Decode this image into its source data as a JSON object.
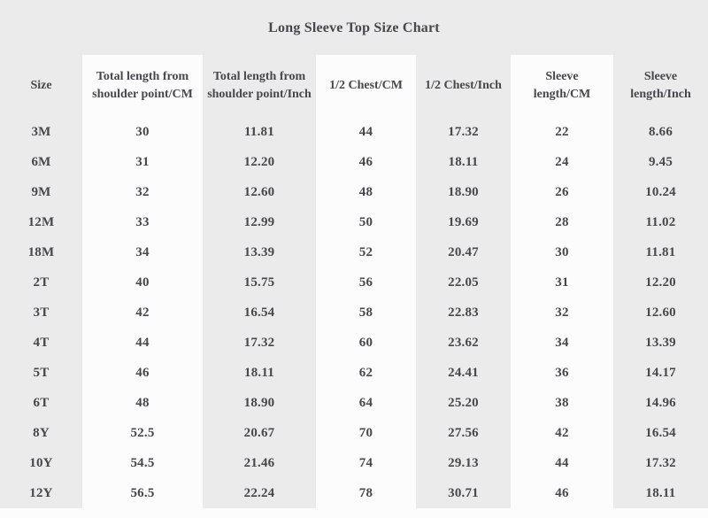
{
  "title": "Long Sleeve Top Size Chart",
  "colors": {
    "page_background": "#ebebeb",
    "stripe_background": "#fcfcfc",
    "text": "#47474d"
  },
  "chart_data": {
    "type": "table",
    "title": "Long Sleeve Top Size Chart",
    "columns": [
      "Size",
      "Total length from shoulder point/CM",
      "Total length from shoulder point/Inch",
      "1/2 Chest/CM",
      "1/2 Chest/Inch",
      "Sleeve length/CM",
      "Sleeve length/Inch"
    ],
    "rows": [
      [
        "3M",
        "30",
        "11.81",
        "44",
        "17.32",
        "22",
        "8.66"
      ],
      [
        "6M",
        "31",
        "12.20",
        "46",
        "18.11",
        "24",
        "9.45"
      ],
      [
        "9M",
        "32",
        "12.60",
        "48",
        "18.90",
        "26",
        "10.24"
      ],
      [
        "12M",
        "33",
        "12.99",
        "50",
        "19.69",
        "28",
        "11.02"
      ],
      [
        "18M",
        "34",
        "13.39",
        "52",
        "20.47",
        "30",
        "11.81"
      ],
      [
        "2T",
        "40",
        "15.75",
        "56",
        "22.05",
        "31",
        "12.20"
      ],
      [
        "3T",
        "42",
        "16.54",
        "58",
        "22.83",
        "32",
        "12.60"
      ],
      [
        "4T",
        "44",
        "17.32",
        "60",
        "23.62",
        "34",
        "13.39"
      ],
      [
        "5T",
        "46",
        "18.11",
        "62",
        "24.41",
        "36",
        "14.17"
      ],
      [
        "6T",
        "48",
        "18.90",
        "64",
        "25.20",
        "38",
        "14.96"
      ],
      [
        "8Y",
        "52.5",
        "20.67",
        "70",
        "27.56",
        "42",
        "16.54"
      ],
      [
        "10Y",
        "54.5",
        "21.46",
        "74",
        "29.13",
        "44",
        "17.32"
      ],
      [
        "12Y",
        "56.5",
        "22.24",
        "78",
        "30.71",
        "46",
        "18.11"
      ]
    ],
    "layout": {
      "striped_columns": [
        1,
        3,
        5
      ],
      "grid": "off",
      "header_position": "top"
    }
  }
}
